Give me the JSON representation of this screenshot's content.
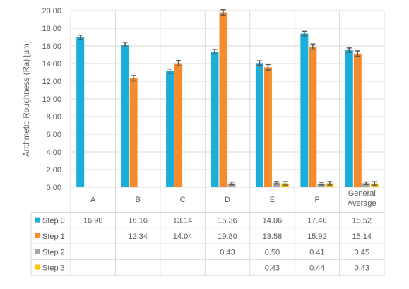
{
  "chart_data": {
    "type": "bar",
    "ylabel": "Arithmetic Roughness (Ra) [μm]",
    "ylim": [
      0,
      20
    ],
    "ytick_step": 2,
    "ytick_labels": [
      "0.00",
      "2.00",
      "4.00",
      "6.00",
      "8.00",
      "10.00",
      "12.00",
      "14.00",
      "16.00",
      "18.00",
      "20.00"
    ],
    "grid": true,
    "legend": "data-table",
    "categories": [
      [
        "A"
      ],
      [
        "B"
      ],
      [
        "C"
      ],
      [
        "D"
      ],
      [
        "E"
      ],
      [
        "F"
      ],
      [
        "General",
        "Average"
      ]
    ],
    "series": [
      {
        "name": "Step 0",
        "color": "#1BAED8",
        "values": [
          16.98,
          16.16,
          13.14,
          15.36,
          14.06,
          17.4,
          15.52
        ],
        "labels": [
          "16.98",
          "16.16",
          "13.14",
          "15.36",
          "14.06",
          "17.40",
          "15.52"
        ],
        "errors": [
          0.25,
          0.25,
          0.25,
          0.25,
          0.25,
          0.25,
          0.25
        ]
      },
      {
        "name": "Step 1",
        "color": "#F58B2D",
        "values": [
          null,
          12.34,
          14.04,
          19.8,
          13.58,
          15.92,
          15.14
        ],
        "labels": [
          "",
          "12.34",
          "14.04",
          "19.80",
          "13.58",
          "15.92",
          "15.14"
        ],
        "errors": [
          0,
          0.3,
          0.3,
          0.3,
          0.3,
          0.3,
          0.3
        ]
      },
      {
        "name": "Step 2",
        "color": "#A5A5A5",
        "values": [
          null,
          null,
          null,
          0.43,
          0.5,
          0.41,
          0.45
        ],
        "labels": [
          "",
          "",
          "",
          "0.43",
          "0.50",
          "0.41",
          "0.45"
        ],
        "errors": [
          0,
          0,
          0,
          0.15,
          0.15,
          0.15,
          0.15
        ]
      },
      {
        "name": "Step 3",
        "color": "#FFC000",
        "values": [
          null,
          null,
          null,
          null,
          0.43,
          0.44,
          0.43
        ],
        "labels": [
          "",
          "",
          "",
          "",
          "0.43",
          "0.44",
          "0.43"
        ],
        "errors": [
          0,
          0,
          0,
          0,
          0.2,
          0.2,
          0.2
        ]
      }
    ]
  }
}
